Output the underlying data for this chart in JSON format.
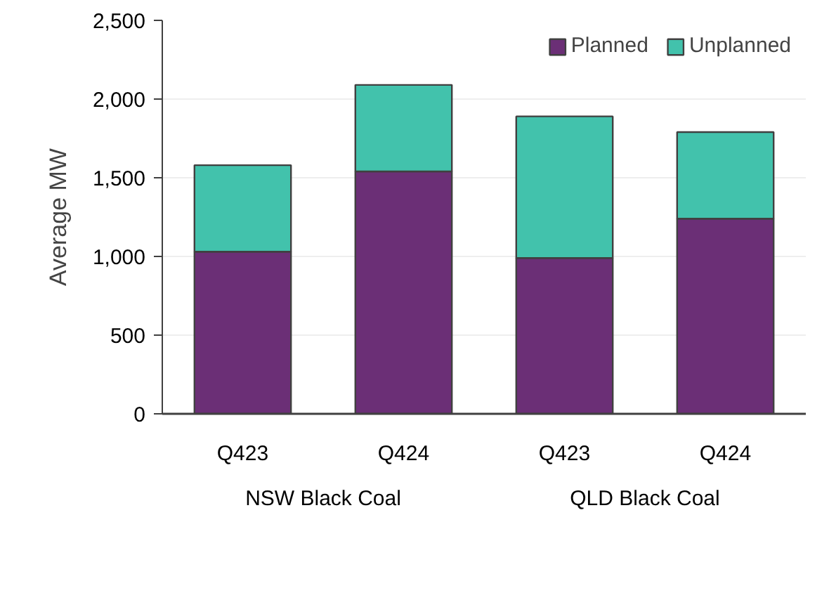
{
  "chart_data": {
    "type": "bar",
    "stacked": true,
    "ylabel": "Average MW",
    "categories": [
      "Q423",
      "Q424",
      "Q423",
      "Q424"
    ],
    "annotations": [
      "NSW Black Coal",
      "QLD Black Coal"
    ],
    "series": [
      {
        "name": "Planned",
        "color": "#6b2f76",
        "values": [
          1030,
          1540,
          990,
          1240
        ]
      },
      {
        "name": "Unplanned",
        "color": "#42c2ac",
        "values": [
          550,
          550,
          900,
          550
        ]
      }
    ],
    "ylim": [
      0,
      2500
    ],
    "yticks": [
      0,
      {
        "value": 500,
        "label": "500"
      },
      {
        "value": 1000,
        "label": "1,000"
      },
      {
        "value": 1500,
        "label": "1,500"
      },
      {
        "value": 2000,
        "label": "2,000"
      },
      {
        "value": 2500,
        "label": "2,500"
      }
    ],
    "grid": "y",
    "legend": "top right"
  }
}
